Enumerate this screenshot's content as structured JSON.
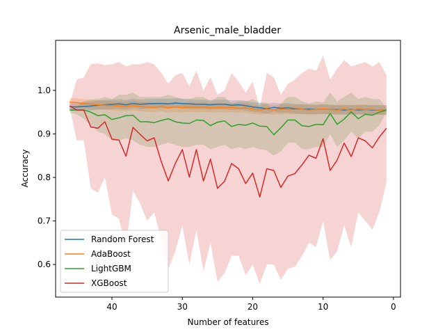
{
  "chart_data": {
    "type": "line",
    "title": "Arsenic_male_bladder",
    "xlabel": "Number of features",
    "ylabel": "Accuracy",
    "xlim": [
      48,
      -1
    ],
    "ylim": [
      0.525,
      1.115
    ],
    "xticks": [
      40,
      30,
      20,
      10,
      0
    ],
    "xtick_labels": [
      "40",
      "30",
      "20",
      "10",
      "0"
    ],
    "yticks": [
      0.6,
      0.7,
      0.8,
      0.9,
      1.0
    ],
    "ytick_labels": [
      "0.6",
      "0.7",
      "0.8",
      "0.9",
      "1.0"
    ],
    "grid": false,
    "legend_position": "lower-left",
    "x": [
      46,
      45,
      44,
      43,
      42,
      41,
      40,
      39,
      38,
      37,
      36,
      35,
      34,
      33,
      32,
      31,
      30,
      29,
      28,
      27,
      26,
      25,
      24,
      23,
      22,
      21,
      20,
      19,
      18,
      17,
      16,
      15,
      14,
      13,
      12,
      11,
      10,
      9,
      8,
      7,
      6,
      5,
      4,
      3,
      2,
      1
    ],
    "series": [
      {
        "name": "Random Forest",
        "color": "#1f77b4",
        "values": [
          0.963,
          0.962,
          0.963,
          0.964,
          0.966,
          0.967,
          0.968,
          0.969,
          0.967,
          0.97,
          0.968,
          0.969,
          0.97,
          0.97,
          0.969,
          0.971,
          0.97,
          0.969,
          0.968,
          0.968,
          0.967,
          0.968,
          0.968,
          0.966,
          0.967,
          0.965,
          0.962,
          0.96,
          0.958,
          0.961,
          0.959,
          0.96,
          0.958,
          0.957,
          0.957,
          0.956,
          0.957,
          0.956,
          0.956,
          0.955,
          0.956,
          0.955,
          0.956,
          0.955,
          0.955,
          0.955
        ],
        "band": [
          [
            0.955,
            0.971
          ],
          [
            0.953,
            0.971
          ],
          [
            0.953,
            0.973
          ],
          [
            0.954,
            0.974
          ],
          [
            0.955,
            0.977
          ],
          [
            0.956,
            0.978
          ],
          [
            0.957,
            0.979
          ],
          [
            0.958,
            0.98
          ],
          [
            0.956,
            0.978
          ],
          [
            0.959,
            0.981
          ],
          [
            0.957,
            0.979
          ],
          [
            0.958,
            0.98
          ],
          [
            0.959,
            0.981
          ],
          [
            0.959,
            0.981
          ],
          [
            0.958,
            0.98
          ],
          [
            0.96,
            0.982
          ],
          [
            0.959,
            0.981
          ],
          [
            0.958,
            0.98
          ],
          [
            0.957,
            0.979
          ],
          [
            0.957,
            0.979
          ],
          [
            0.956,
            0.978
          ],
          [
            0.957,
            0.979
          ],
          [
            0.957,
            0.979
          ],
          [
            0.955,
            0.977
          ],
          [
            0.956,
            0.978
          ],
          [
            0.954,
            0.976
          ],
          [
            0.951,
            0.973
          ],
          [
            0.949,
            0.971
          ],
          [
            0.947,
            0.969
          ],
          [
            0.95,
            0.972
          ],
          [
            0.948,
            0.97
          ],
          [
            0.949,
            0.971
          ],
          [
            0.947,
            0.969
          ],
          [
            0.946,
            0.968
          ],
          [
            0.946,
            0.968
          ],
          [
            0.945,
            0.967
          ],
          [
            0.946,
            0.968
          ],
          [
            0.945,
            0.967
          ],
          [
            0.945,
            0.967
          ],
          [
            0.944,
            0.966
          ],
          [
            0.945,
            0.967
          ],
          [
            0.944,
            0.966
          ],
          [
            0.945,
            0.967
          ],
          [
            0.944,
            0.966
          ],
          [
            0.944,
            0.966
          ],
          [
            0.944,
            0.966
          ]
        ]
      },
      {
        "name": "AdaBoost",
        "color": "#ff7f0e",
        "values": [
          0.973,
          0.972,
          0.97,
          0.968,
          0.967,
          0.966,
          0.965,
          0.964,
          0.963,
          0.965,
          0.963,
          0.962,
          0.961,
          0.963,
          0.96,
          0.962,
          0.96,
          0.962,
          0.961,
          0.962,
          0.96,
          0.961,
          0.96,
          0.961,
          0.959,
          0.96,
          0.957,
          0.955,
          0.957,
          0.955,
          0.957,
          0.956,
          0.956,
          0.957,
          0.955,
          0.956,
          0.957,
          0.956,
          0.955,
          0.957,
          0.955,
          0.957,
          0.956,
          0.956,
          0.955,
          0.955
        ],
        "band": [
          [
            0.963,
            0.983
          ],
          [
            0.962,
            0.982
          ],
          [
            0.96,
            0.98
          ],
          [
            0.958,
            0.978
          ],
          [
            0.957,
            0.977
          ],
          [
            0.956,
            0.976
          ],
          [
            0.954,
            0.976
          ],
          [
            0.953,
            0.975
          ],
          [
            0.952,
            0.974
          ],
          [
            0.954,
            0.976
          ],
          [
            0.952,
            0.974
          ],
          [
            0.951,
            0.973
          ],
          [
            0.95,
            0.972
          ],
          [
            0.952,
            0.974
          ],
          [
            0.949,
            0.971
          ],
          [
            0.951,
            0.973
          ],
          [
            0.949,
            0.971
          ],
          [
            0.951,
            0.973
          ],
          [
            0.95,
            0.972
          ],
          [
            0.951,
            0.973
          ],
          [
            0.949,
            0.971
          ],
          [
            0.95,
            0.972
          ],
          [
            0.949,
            0.971
          ],
          [
            0.95,
            0.972
          ],
          [
            0.948,
            0.97
          ],
          [
            0.949,
            0.971
          ],
          [
            0.946,
            0.968
          ],
          [
            0.944,
            0.966
          ],
          [
            0.946,
            0.968
          ],
          [
            0.944,
            0.966
          ],
          [
            0.946,
            0.968
          ],
          [
            0.945,
            0.967
          ],
          [
            0.945,
            0.967
          ],
          [
            0.946,
            0.968
          ],
          [
            0.944,
            0.966
          ],
          [
            0.945,
            0.967
          ],
          [
            0.946,
            0.968
          ],
          [
            0.945,
            0.967
          ],
          [
            0.944,
            0.966
          ],
          [
            0.946,
            0.968
          ],
          [
            0.944,
            0.966
          ],
          [
            0.946,
            0.968
          ],
          [
            0.945,
            0.967
          ],
          [
            0.945,
            0.967
          ],
          [
            0.944,
            0.966
          ],
          [
            0.944,
            0.966
          ]
        ]
      },
      {
        "name": "LightGBM",
        "color": "#2ca02c",
        "values": [
          0.955,
          0.955,
          0.955,
          0.95,
          0.942,
          0.944,
          0.933,
          0.937,
          0.942,
          0.943,
          0.928,
          0.928,
          0.926,
          0.931,
          0.935,
          0.928,
          0.925,
          0.924,
          0.932,
          0.931,
          0.919,
          0.927,
          0.93,
          0.917,
          0.922,
          0.92,
          0.925,
          0.918,
          0.917,
          0.898,
          0.914,
          0.932,
          0.932,
          0.919,
          0.917,
          0.922,
          0.921,
          0.947,
          0.922,
          0.934,
          0.951,
          0.935,
          0.945,
          0.943,
          0.95,
          0.955
        ],
        "band": [
          [
            0.95,
            0.96
          ],
          [
            0.945,
            0.965
          ],
          [
            0.935,
            0.975
          ],
          [
            0.92,
            0.98
          ],
          [
            0.905,
            0.98
          ],
          [
            0.9,
            0.985
          ],
          [
            0.885,
            0.98
          ],
          [
            0.885,
            0.99
          ],
          [
            0.89,
            0.99
          ],
          [
            0.885,
            0.995
          ],
          [
            0.875,
            0.985
          ],
          [
            0.87,
            0.985
          ],
          [
            0.87,
            0.985
          ],
          [
            0.875,
            0.985
          ],
          [
            0.88,
            0.99
          ],
          [
            0.875,
            0.985
          ],
          [
            0.87,
            0.98
          ],
          [
            0.87,
            0.98
          ],
          [
            0.875,
            0.985
          ],
          [
            0.875,
            0.985
          ],
          [
            0.865,
            0.975
          ],
          [
            0.87,
            0.985
          ],
          [
            0.875,
            0.985
          ],
          [
            0.865,
            0.97
          ],
          [
            0.87,
            0.975
          ],
          [
            0.865,
            0.975
          ],
          [
            0.87,
            0.98
          ],
          [
            0.865,
            0.972
          ],
          [
            0.862,
            0.972
          ],
          [
            0.85,
            0.95
          ],
          [
            0.86,
            0.97
          ],
          [
            0.88,
            0.985
          ],
          [
            0.88,
            0.985
          ],
          [
            0.865,
            0.975
          ],
          [
            0.865,
            0.97
          ],
          [
            0.87,
            0.975
          ],
          [
            0.87,
            0.972
          ],
          [
            0.9,
            0.995
          ],
          [
            0.87,
            0.975
          ],
          [
            0.885,
            0.985
          ],
          [
            0.905,
            0.995
          ],
          [
            0.89,
            0.98
          ],
          [
            0.905,
            0.985
          ],
          [
            0.905,
            0.98
          ],
          [
            0.92,
            0.98
          ],
          [
            0.95,
            0.96
          ]
        ]
      },
      {
        "name": "XGBoost",
        "color": "#d62728",
        "values": [
          0.964,
          0.955,
          0.955,
          0.916,
          0.913,
          0.928,
          0.888,
          0.886,
          0.849,
          0.915,
          0.899,
          0.884,
          0.891,
          0.837,
          0.792,
          0.832,
          0.864,
          0.801,
          0.864,
          0.792,
          0.842,
          0.775,
          0.791,
          0.832,
          0.82,
          0.786,
          0.81,
          0.755,
          0.82,
          0.816,
          0.777,
          0.803,
          0.809,
          0.829,
          0.851,
          0.844,
          0.889,
          0.816,
          0.84,
          0.879,
          0.848,
          0.891,
          0.884,
          0.868,
          0.893,
          0.913
        ],
        "band": [
          [
            0.96,
            0.968
          ],
          [
            0.885,
            1.025
          ],
          [
            0.885,
            1.03
          ],
          [
            0.775,
            1.06
          ],
          [
            0.765,
            1.062
          ],
          [
            0.8,
            1.058
          ],
          [
            0.715,
            1.06
          ],
          [
            0.705,
            1.065
          ],
          [
            0.64,
            1.055
          ],
          [
            0.77,
            1.06
          ],
          [
            0.74,
            1.06
          ],
          [
            0.7,
            1.065
          ],
          [
            0.72,
            1.06
          ],
          [
            0.66,
            1.04
          ],
          [
            0.59,
            1.015
          ],
          [
            0.63,
            1.035
          ],
          [
            0.69,
            1.04
          ],
          [
            0.6,
            1.01
          ],
          [
            0.68,
            1.045
          ],
          [
            0.585,
            1.0
          ],
          [
            0.65,
            1.03
          ],
          [
            0.56,
            0.99
          ],
          [
            0.58,
            1.0
          ],
          [
            0.62,
            1.04
          ],
          [
            0.62,
            1.02
          ],
          [
            0.575,
            0.995
          ],
          [
            0.6,
            1.02
          ],
          [
            0.555,
            0.96
          ],
          [
            0.6,
            1.04
          ],
          [
            0.6,
            1.03
          ],
          [
            0.565,
            0.99
          ],
          [
            0.59,
            1.015
          ],
          [
            0.595,
            1.025
          ],
          [
            0.62,
            1.04
          ],
          [
            0.65,
            1.05
          ],
          [
            0.64,
            1.045
          ],
          [
            0.7,
            1.08
          ],
          [
            0.61,
            1.025
          ],
          [
            0.63,
            1.05
          ],
          [
            0.69,
            1.07
          ],
          [
            0.64,
            1.055
          ],
          [
            0.72,
            1.06
          ],
          [
            0.7,
            1.065
          ],
          [
            0.68,
            1.055
          ],
          [
            0.72,
            1.065
          ],
          [
            0.79,
            1.035
          ]
        ]
      }
    ]
  }
}
